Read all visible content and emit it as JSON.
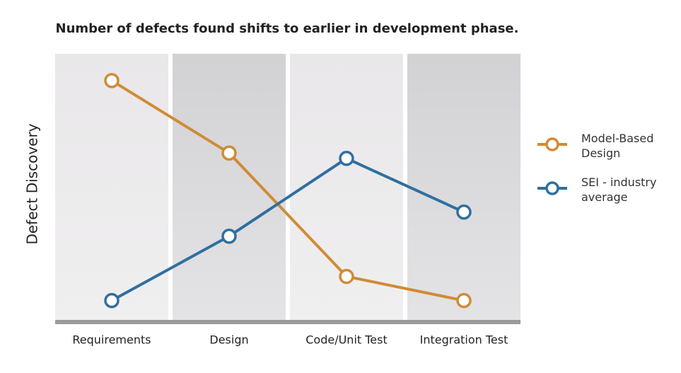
{
  "chart_data": {
    "type": "line",
    "title": "Number of defects found shifts to earlier in development phase.",
    "y_label": "Defect Discovery",
    "categories": [
      "Requirements",
      "Design",
      "Code/Unit Test",
      "Integration Test"
    ],
    "ylim": [
      0,
      100
    ],
    "series": [
      {
        "name": "Model-Based Design",
        "color": "#d08b36",
        "values": [
          90,
          63,
          17,
          8
        ]
      },
      {
        "name": "SEI - industry average",
        "color": "#2f6f9f",
        "values": [
          8,
          32,
          61,
          41
        ]
      }
    ]
  }
}
